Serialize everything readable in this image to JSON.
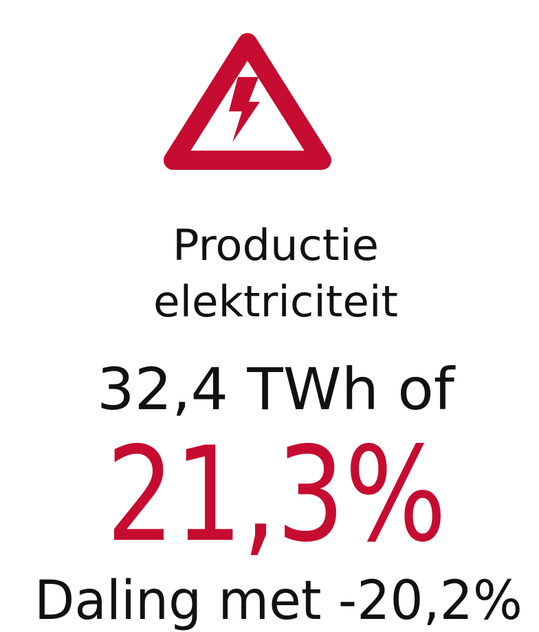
{
  "icon": {
    "label": "warning-electricity"
  },
  "title": {
    "line1": "Productie",
    "line2": "elektriciteit"
  },
  "amount": "32,4 TWh of",
  "share": "21,3%",
  "change": "Daling met -20,2%"
}
